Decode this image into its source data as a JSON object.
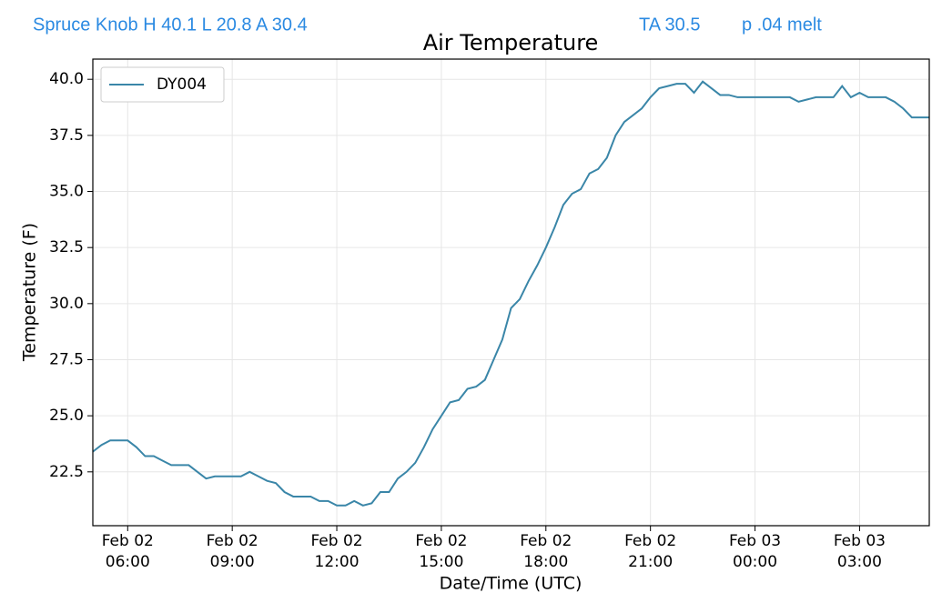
{
  "header": {
    "station": "Spruce Knob H 40.1 L 20.8 A 30.4",
    "ta": "TA 30.5",
    "precip": "p .04 melt"
  },
  "chart_data": {
    "type": "line",
    "title": "Air Temperature",
    "xlabel": "Date/Time (UTC)",
    "ylabel": "Temperature (F)",
    "x": [
      "Feb 02 05:00",
      "Feb 02 05:15",
      "Feb 02 05:30",
      "Feb 02 05:45",
      "Feb 02 06:00",
      "Feb 02 06:15",
      "Feb 02 06:30",
      "Feb 02 06:45",
      "Feb 02 07:00",
      "Feb 02 07:15",
      "Feb 02 07:30",
      "Feb 02 07:45",
      "Feb 02 08:00",
      "Feb 02 08:15",
      "Feb 02 08:30",
      "Feb 02 08:45",
      "Feb 02 09:00",
      "Feb 02 09:15",
      "Feb 02 09:30",
      "Feb 02 09:45",
      "Feb 02 10:00",
      "Feb 02 10:15",
      "Feb 02 10:30",
      "Feb 02 10:45",
      "Feb 02 11:00",
      "Feb 02 11:15",
      "Feb 02 11:30",
      "Feb 02 11:45",
      "Feb 02 12:00",
      "Feb 02 12:15",
      "Feb 02 12:30",
      "Feb 02 12:45",
      "Feb 02 13:00",
      "Feb 02 13:15",
      "Feb 02 13:30",
      "Feb 02 13:45",
      "Feb 02 14:00",
      "Feb 02 14:15",
      "Feb 02 14:30",
      "Feb 02 14:45",
      "Feb 02 15:00",
      "Feb 02 15:15",
      "Feb 02 15:30",
      "Feb 02 15:45",
      "Feb 02 16:00",
      "Feb 02 16:15",
      "Feb 02 16:30",
      "Feb 02 16:45",
      "Feb 02 17:00",
      "Feb 02 17:15",
      "Feb 02 17:30",
      "Feb 02 17:45",
      "Feb 02 18:00",
      "Feb 02 18:15",
      "Feb 02 18:30",
      "Feb 02 18:45",
      "Feb 02 19:00",
      "Feb 02 19:15",
      "Feb 02 19:30",
      "Feb 02 19:45",
      "Feb 02 20:00",
      "Feb 02 20:15",
      "Feb 02 20:30",
      "Feb 02 20:45",
      "Feb 02 21:00",
      "Feb 02 21:15",
      "Feb 02 21:30",
      "Feb 02 21:45",
      "Feb 02 22:00",
      "Feb 02 22:15",
      "Feb 02 22:30",
      "Feb 02 22:45",
      "Feb 02 23:00",
      "Feb 02 23:15",
      "Feb 02 23:30",
      "Feb 02 23:45",
      "Feb 03 00:00",
      "Feb 03 00:15",
      "Feb 03 00:30",
      "Feb 03 00:45",
      "Feb 03 01:00",
      "Feb 03 01:15",
      "Feb 03 01:30",
      "Feb 03 01:45",
      "Feb 03 02:00",
      "Feb 03 02:15",
      "Feb 03 02:30",
      "Feb 03 02:45",
      "Feb 03 03:00",
      "Feb 03 03:15",
      "Feb 03 03:30",
      "Feb 03 03:45",
      "Feb 03 04:00",
      "Feb 03 04:15",
      "Feb 03 04:30",
      "Feb 03 04:45",
      "Feb 03 05:00"
    ],
    "series": [
      {
        "name": "DY004",
        "color": "#3a86a8",
        "values": [
          23.4,
          23.7,
          23.9,
          23.9,
          23.9,
          23.6,
          23.2,
          23.2,
          23.0,
          22.8,
          22.8,
          22.8,
          22.5,
          22.2,
          22.3,
          22.3,
          22.3,
          22.3,
          22.5,
          22.3,
          22.1,
          22.0,
          21.6,
          21.4,
          21.4,
          21.4,
          21.2,
          21.2,
          21.0,
          21.0,
          21.2,
          21.0,
          21.1,
          21.6,
          21.6,
          22.2,
          22.5,
          22.9,
          23.6,
          24.4,
          25.0,
          25.6,
          25.7,
          26.2,
          26.3,
          26.6,
          27.5,
          28.4,
          29.8,
          30.2,
          31.0,
          31.7,
          32.5,
          33.4,
          34.4,
          34.9,
          35.1,
          35.8,
          36.0,
          36.5,
          37.5,
          38.1,
          38.4,
          38.7,
          39.2,
          39.6,
          39.7,
          39.8,
          39.8,
          39.4,
          39.9,
          39.6,
          39.3,
          39.3,
          39.2,
          39.2,
          39.2,
          39.2,
          39.2,
          39.2,
          39.2,
          39.0,
          39.1,
          39.2,
          39.2,
          39.2,
          39.7,
          39.2,
          39.4,
          39.2,
          39.2,
          39.2,
          39.0,
          38.7,
          38.3,
          38.3,
          38.3
        ]
      }
    ],
    "xlim": [
      "Feb 02 05:00",
      "Feb 03 05:00"
    ],
    "xticks": [
      {
        "value": "Feb 02 06:00",
        "label": "Feb 02\n06:00"
      },
      {
        "value": "Feb 02 09:00",
        "label": "Feb 02\n09:00"
      },
      {
        "value": "Feb 02 12:00",
        "label": "Feb 02\n12:00"
      },
      {
        "value": "Feb 02 15:00",
        "label": "Feb 02\n15:00"
      },
      {
        "value": "Feb 02 18:00",
        "label": "Feb 02\n18:00"
      },
      {
        "value": "Feb 02 21:00",
        "label": "Feb 02\n21:00"
      },
      {
        "value": "Feb 03 00:00",
        "label": "Feb 03\n00:00"
      },
      {
        "value": "Feb 03 03:00",
        "label": "Feb 03\n03:00"
      }
    ],
    "ylim": [
      20.1,
      40.9
    ],
    "yticks": [
      22.5,
      {
        "value": 25,
        "label": "25.0"
      },
      27.5,
      {
        "value": 30,
        "label": "30.0"
      },
      32.5,
      {
        "value": 35,
        "label": "35.0"
      },
      37.5,
      {
        "value": 40,
        "label": "40.0"
      }
    ],
    "grid": true,
    "legend": "upper left"
  }
}
